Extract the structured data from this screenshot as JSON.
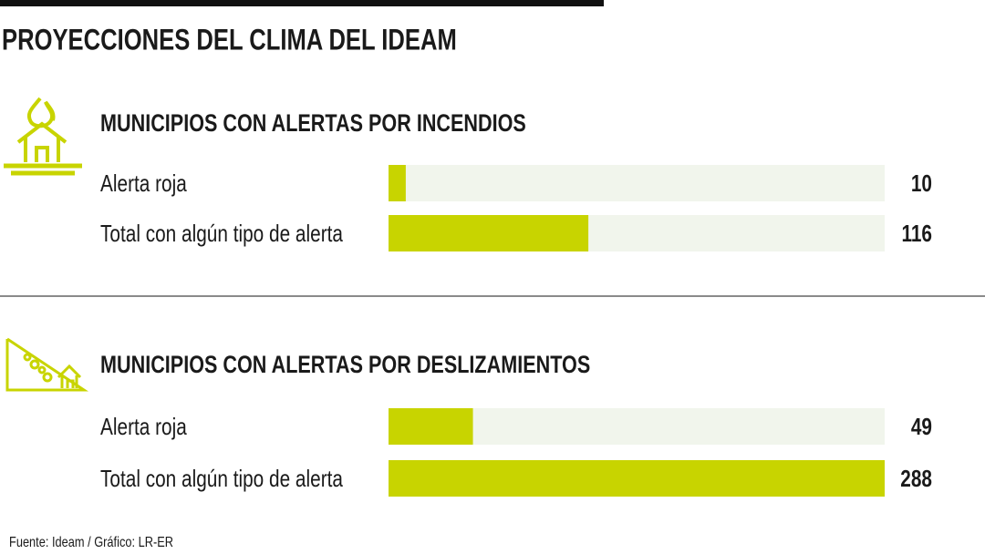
{
  "title": "PROYECCIONES DEL CLIMA DEL IDEAM",
  "source": "Fuente: Ideam / Gráfico: LR-ER",
  "chart_data": [
    {
      "type": "bar",
      "orientation": "horizontal",
      "title": "MUNICIPIOS CON ALERTAS POR INCENDIOS",
      "categories": [
        "Alerta roja",
        "Total con algún tipo de alerta"
      ],
      "values": [
        10,
        116
      ],
      "color": "#c8d400",
      "xlim": [
        0,
        288
      ]
    },
    {
      "type": "bar",
      "orientation": "horizontal",
      "title": "MUNICIPIOS CON ALERTAS POR DESLIZAMIENTOS",
      "categories": [
        "Alerta roja",
        "Total con algún tipo de alerta"
      ],
      "values": [
        49,
        288
      ],
      "color": "#c8d400",
      "xlim": [
        0,
        288
      ]
    }
  ]
}
